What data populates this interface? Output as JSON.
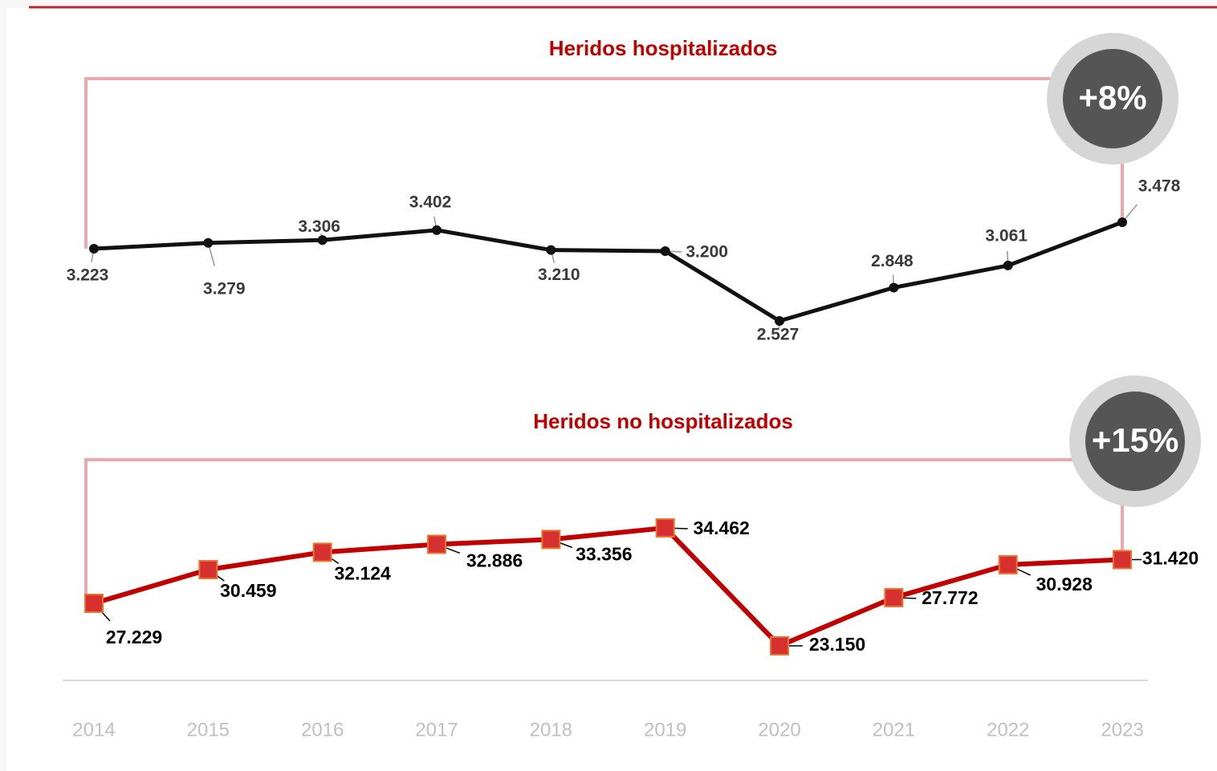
{
  "chart_data": {
    "type": "line",
    "categories": [
      "2014",
      "2015",
      "2016",
      "2017",
      "2018",
      "2019",
      "2020",
      "2021",
      "2022",
      "2023"
    ],
    "series": [
      {
        "name": "Heridos hospitalizados",
        "color": "#111111",
        "marker": "circle",
        "annotation": "+8%",
        "values": [
          3223,
          3279,
          3306,
          3402,
          3210,
          3200,
          2527,
          2848,
          3061,
          3478
        ],
        "value_labels": [
          "3.223",
          "3.279",
          "3.306",
          "3.402",
          "3.210",
          "3.200",
          "2.527",
          "2.848",
          "3.061",
          "3.478"
        ]
      },
      {
        "name": "Heridos no hospitalizados",
        "color": "#c00000",
        "marker": "square",
        "annotation": "+15%",
        "values": [
          27229,
          30459,
          32124,
          32886,
          33356,
          34462,
          23150,
          27772,
          30928,
          31420
        ],
        "value_labels": [
          "27.229",
          "30.459",
          "32.124",
          "32.886",
          "33.356",
          "34.462",
          "23.150",
          "27.772",
          "30.928",
          "31.420"
        ]
      }
    ]
  }
}
